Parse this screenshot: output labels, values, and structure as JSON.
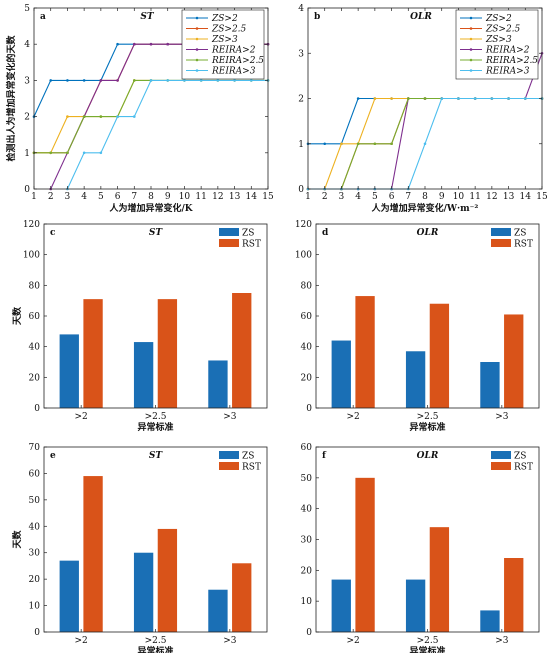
{
  "colors": {
    "zs": "#1a6fb5",
    "rst": "#d95319",
    "zs2": "#0072bd",
    "zs25": "#d95319",
    "zs3": "#edb120",
    "reira2": "#7e2f8e",
    "reira25": "#77ac30",
    "reira3": "#4dbeee"
  },
  "chart_data": [
    {
      "id": "a",
      "type": "line",
      "letter": "a",
      "title": "ST",
      "xlabel": "人为增加异常变化/K",
      "ylabel": "检测出人为增加异常变化的天数",
      "xlim": [
        1,
        15
      ],
      "ylim": [
        0,
        5
      ],
      "xticks": [
        1,
        2,
        3,
        4,
        5,
        6,
        7,
        8,
        9,
        10,
        11,
        12,
        13,
        14,
        15
      ],
      "yticks": [
        0,
        1,
        2,
        3,
        4,
        5
      ],
      "legend_position": "top-right",
      "series": [
        {
          "name": "ZS>2",
          "key": "zs2",
          "x": [
            1,
            2,
            3,
            4,
            5,
            6,
            7,
            8,
            9,
            10,
            11,
            12,
            13,
            14,
            15
          ],
          "y": [
            2,
            3,
            3,
            3,
            3,
            4,
            4,
            4,
            4,
            4,
            4,
            4,
            4,
            4,
            4
          ]
        },
        {
          "name": "ZS>2.5",
          "key": "zs25",
          "x": [
            1,
            2,
            3,
            4,
            5,
            6,
            7,
            8,
            9,
            10,
            11,
            12,
            13,
            14,
            15
          ],
          "y": [
            1,
            1,
            1,
            2,
            3,
            3,
            4,
            4,
            4,
            4,
            4,
            4,
            4,
            4,
            4
          ]
        },
        {
          "name": "ZS>3",
          "key": "zs3",
          "x": [
            1,
            2,
            3,
            4,
            5,
            6,
            7,
            8,
            9,
            10,
            11,
            12,
            13,
            14,
            15
          ],
          "y": [
            1,
            1,
            2,
            2,
            2,
            2,
            3,
            3,
            3,
            3,
            3,
            3,
            3,
            3,
            3
          ]
        },
        {
          "name": "REIRA>2",
          "key": "reira2",
          "x": [
            2,
            3,
            4,
            5,
            6,
            7,
            8,
            9,
            10,
            11,
            12,
            13,
            14,
            15
          ],
          "y": [
            0,
            1,
            2,
            3,
            3,
            4,
            4,
            4,
            4,
            4,
            4,
            4,
            4,
            4
          ]
        },
        {
          "name": "REIRA>2.5",
          "key": "reira25",
          "x": [
            1,
            2,
            3,
            4,
            5,
            6,
            7,
            8,
            9,
            10,
            11,
            12,
            13,
            14,
            15
          ],
          "y": [
            1,
            1,
            1,
            2,
            2,
            2,
            3,
            3,
            3,
            3,
            3,
            3,
            3,
            3,
            3
          ]
        },
        {
          "name": "REIRA>3",
          "key": "reira3",
          "x": [
            3,
            4,
            5,
            6,
            7,
            8,
            9,
            10,
            11,
            12,
            13,
            14,
            15
          ],
          "y": [
            0,
            1,
            1,
            2,
            2,
            3,
            3,
            3,
            3,
            3,
            3,
            3,
            3
          ]
        }
      ]
    },
    {
      "id": "b",
      "type": "line",
      "letter": "b",
      "title": "OLR",
      "xlabel": "人为增加异常变化/W·m⁻²",
      "ylabel": "",
      "xlim": [
        1,
        15
      ],
      "ylim": [
        0,
        4
      ],
      "xticks": [
        1,
        2,
        3,
        4,
        5,
        6,
        7,
        8,
        9,
        10,
        11,
        12,
        13,
        14,
        15
      ],
      "yticks": [
        0,
        1,
        2,
        3,
        4
      ],
      "legend_position": "top-right",
      "series": [
        {
          "name": "ZS>2",
          "key": "zs2",
          "x": [
            1,
            2,
            3,
            4,
            5,
            6,
            7,
            8,
            9,
            10,
            11,
            12,
            13,
            14,
            15
          ],
          "y": [
            1,
            1,
            1,
            2,
            2,
            2,
            2,
            2,
            2,
            2,
            2,
            2,
            2,
            2,
            2
          ]
        },
        {
          "name": "ZS>2.5",
          "key": "zs25",
          "x": [
            1,
            2,
            3,
            4,
            5,
            6,
            7,
            8,
            9,
            10,
            11,
            12,
            13,
            14,
            15
          ],
          "y": [
            0,
            0,
            0,
            1,
            1,
            1,
            2,
            2,
            2,
            2,
            2,
            2,
            2,
            2,
            2
          ]
        },
        {
          "name": "ZS>3",
          "key": "zs3",
          "x": [
            1,
            2,
            3,
            4,
            5,
            6,
            7,
            8,
            9,
            10,
            11,
            12,
            13,
            14,
            15
          ],
          "y": [
            0,
            0,
            1,
            1,
            2,
            2,
            2,
            2,
            2,
            2,
            2,
            2,
            2,
            2,
            2
          ]
        },
        {
          "name": "REIRA>2",
          "key": "reira2",
          "x": [
            1,
            2,
            3,
            4,
            5,
            6,
            7,
            8,
            9,
            10,
            11,
            12,
            13,
            14,
            15
          ],
          "y": [
            0,
            0,
            0,
            0,
            0,
            0,
            2,
            2,
            2,
            2,
            2,
            2,
            2,
            2,
            3
          ]
        },
        {
          "name": "REIRA>2.5",
          "key": "reira25",
          "x": [
            1,
            2,
            3,
            4,
            5,
            6,
            7,
            8,
            9,
            10,
            11,
            12,
            13,
            14,
            15
          ],
          "y": [
            0,
            0,
            0,
            1,
            1,
            1,
            2,
            2,
            2,
            2,
            2,
            2,
            2,
            2,
            2
          ]
        },
        {
          "name": "REIRA>3",
          "key": "reira3",
          "x": [
            1,
            2,
            3,
            4,
            5,
            6,
            7,
            8,
            9,
            10,
            11,
            12,
            13,
            14,
            15
          ],
          "y": [
            0,
            0,
            0,
            0,
            0,
            0,
            0,
            1,
            2,
            2,
            2,
            2,
            2,
            2,
            2
          ]
        }
      ]
    },
    {
      "id": "c",
      "type": "bar",
      "letter": "c",
      "title": "ST",
      "xlabel": "异常标准",
      "ylabel": "天数",
      "categories": [
        ">2",
        ">2.5",
        ">3"
      ],
      "ylim": [
        0,
        120
      ],
      "yticks": [
        0,
        20,
        40,
        60,
        80,
        100,
        120
      ],
      "legend_position": "top-right",
      "series": [
        {
          "name": "ZS",
          "key": "zs",
          "values": [
            48,
            43,
            31
          ]
        },
        {
          "name": "RST",
          "key": "rst",
          "values": [
            71,
            71,
            75
          ]
        }
      ]
    },
    {
      "id": "d",
      "type": "bar",
      "letter": "d",
      "title": "OLR",
      "xlabel": "异常标准",
      "ylabel": "",
      "categories": [
        ">2",
        ">2.5",
        ">3"
      ],
      "ylim": [
        0,
        120
      ],
      "yticks": [
        0,
        20,
        40,
        60,
        80,
        100,
        120
      ],
      "legend_position": "top-right",
      "series": [
        {
          "name": "ZS",
          "key": "zs",
          "values": [
            44,
            37,
            30
          ]
        },
        {
          "name": "RST",
          "key": "rst",
          "values": [
            73,
            68,
            61
          ]
        }
      ]
    },
    {
      "id": "e",
      "type": "bar",
      "letter": "e",
      "title": "ST",
      "xlabel": "异常标准",
      "ylabel": "天数",
      "categories": [
        ">2",
        ">2.5",
        ">3"
      ],
      "ylim": [
        0,
        70
      ],
      "yticks": [
        0,
        10,
        20,
        30,
        40,
        50,
        60,
        70
      ],
      "legend_position": "top-right",
      "series": [
        {
          "name": "ZS",
          "key": "zs",
          "values": [
            27,
            30,
            16
          ]
        },
        {
          "name": "RST",
          "key": "rst",
          "values": [
            59,
            39,
            26
          ]
        }
      ]
    },
    {
      "id": "f",
      "type": "bar",
      "letter": "f",
      "title": "OLR",
      "xlabel": "异常标准",
      "ylabel": "",
      "categories": [
        ">2",
        ">2.5",
        ">3"
      ],
      "ylim": [
        0,
        60
      ],
      "yticks": [
        0,
        10,
        20,
        30,
        40,
        50,
        60
      ],
      "legend_position": "top-right",
      "series": [
        {
          "name": "ZS",
          "key": "zs",
          "values": [
            17,
            17,
            7
          ]
        },
        {
          "name": "RST",
          "key": "rst",
          "values": [
            50,
            34,
            24
          ]
        }
      ]
    }
  ]
}
